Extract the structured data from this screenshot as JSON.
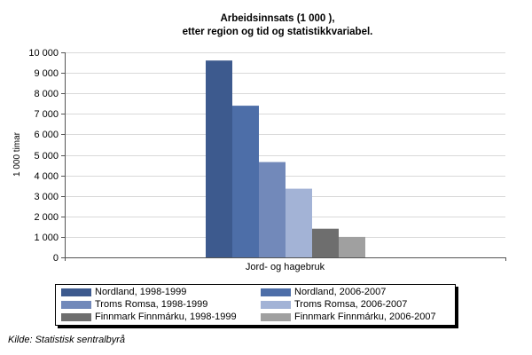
{
  "chart_data": {
    "type": "bar",
    "title": "Arbeidsinnsats (1 000 ),",
    "subtitle": "etter region og tid og statistikkvariabel.",
    "ylabel": "1 000 timar",
    "xlabel": "",
    "categories": [
      "Jord- og hagebruk"
    ],
    "ylim": [
      0,
      10000
    ],
    "yticks": [
      0,
      1000,
      2000,
      3000,
      4000,
      5000,
      6000,
      7000,
      8000,
      9000,
      10000
    ],
    "ytick_labels": [
      "0",
      "1 000",
      "2 000",
      "3 000",
      "4 000",
      "5 000",
      "6 000",
      "7 000",
      "8 000",
      "9 000",
      "10 000"
    ],
    "grid": true,
    "legend_position": "bottom",
    "series": [
      {
        "name": "Nordland, 1998-1999",
        "color": "#3d5a8e",
        "values": [
          9600
        ]
      },
      {
        "name": "Nordland, 2006-2007",
        "color": "#4d6ea8",
        "values": [
          7400
        ]
      },
      {
        "name": "Troms Romsa, 1998-1999",
        "color": "#7289ba",
        "values": [
          4650
        ]
      },
      {
        "name": "Troms Romsa, 2006-2007",
        "color": "#a3b3d6",
        "values": [
          3350
        ]
      },
      {
        "name": "Finnmark Finnmárku, 1998-1999",
        "color": "#6e6e6e",
        "values": [
          1400
        ]
      },
      {
        "name": "Finnmark Finnmárku, 2006-2007",
        "color": "#a0a0a0",
        "values": [
          1000
        ]
      }
    ]
  },
  "source": "Kilde: Statistisk sentralbyrå"
}
